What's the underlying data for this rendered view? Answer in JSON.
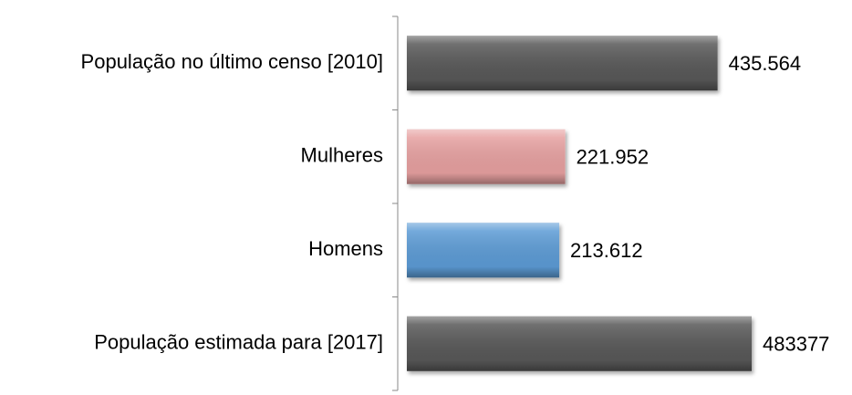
{
  "chart_data": {
    "type": "hbar",
    "categories": [
      "População no último censo [2010]",
      "Mulheres",
      "Homens",
      "População estimada para [2017]"
    ],
    "values": [
      435564,
      221952,
      213612,
      483377
    ],
    "value_labels": [
      "435.564",
      "221.952",
      "213.612",
      "483377"
    ],
    "colors": [
      "#595959",
      "#e6a0a0",
      "#5b9bd5",
      "#595959"
    ]
  }
}
